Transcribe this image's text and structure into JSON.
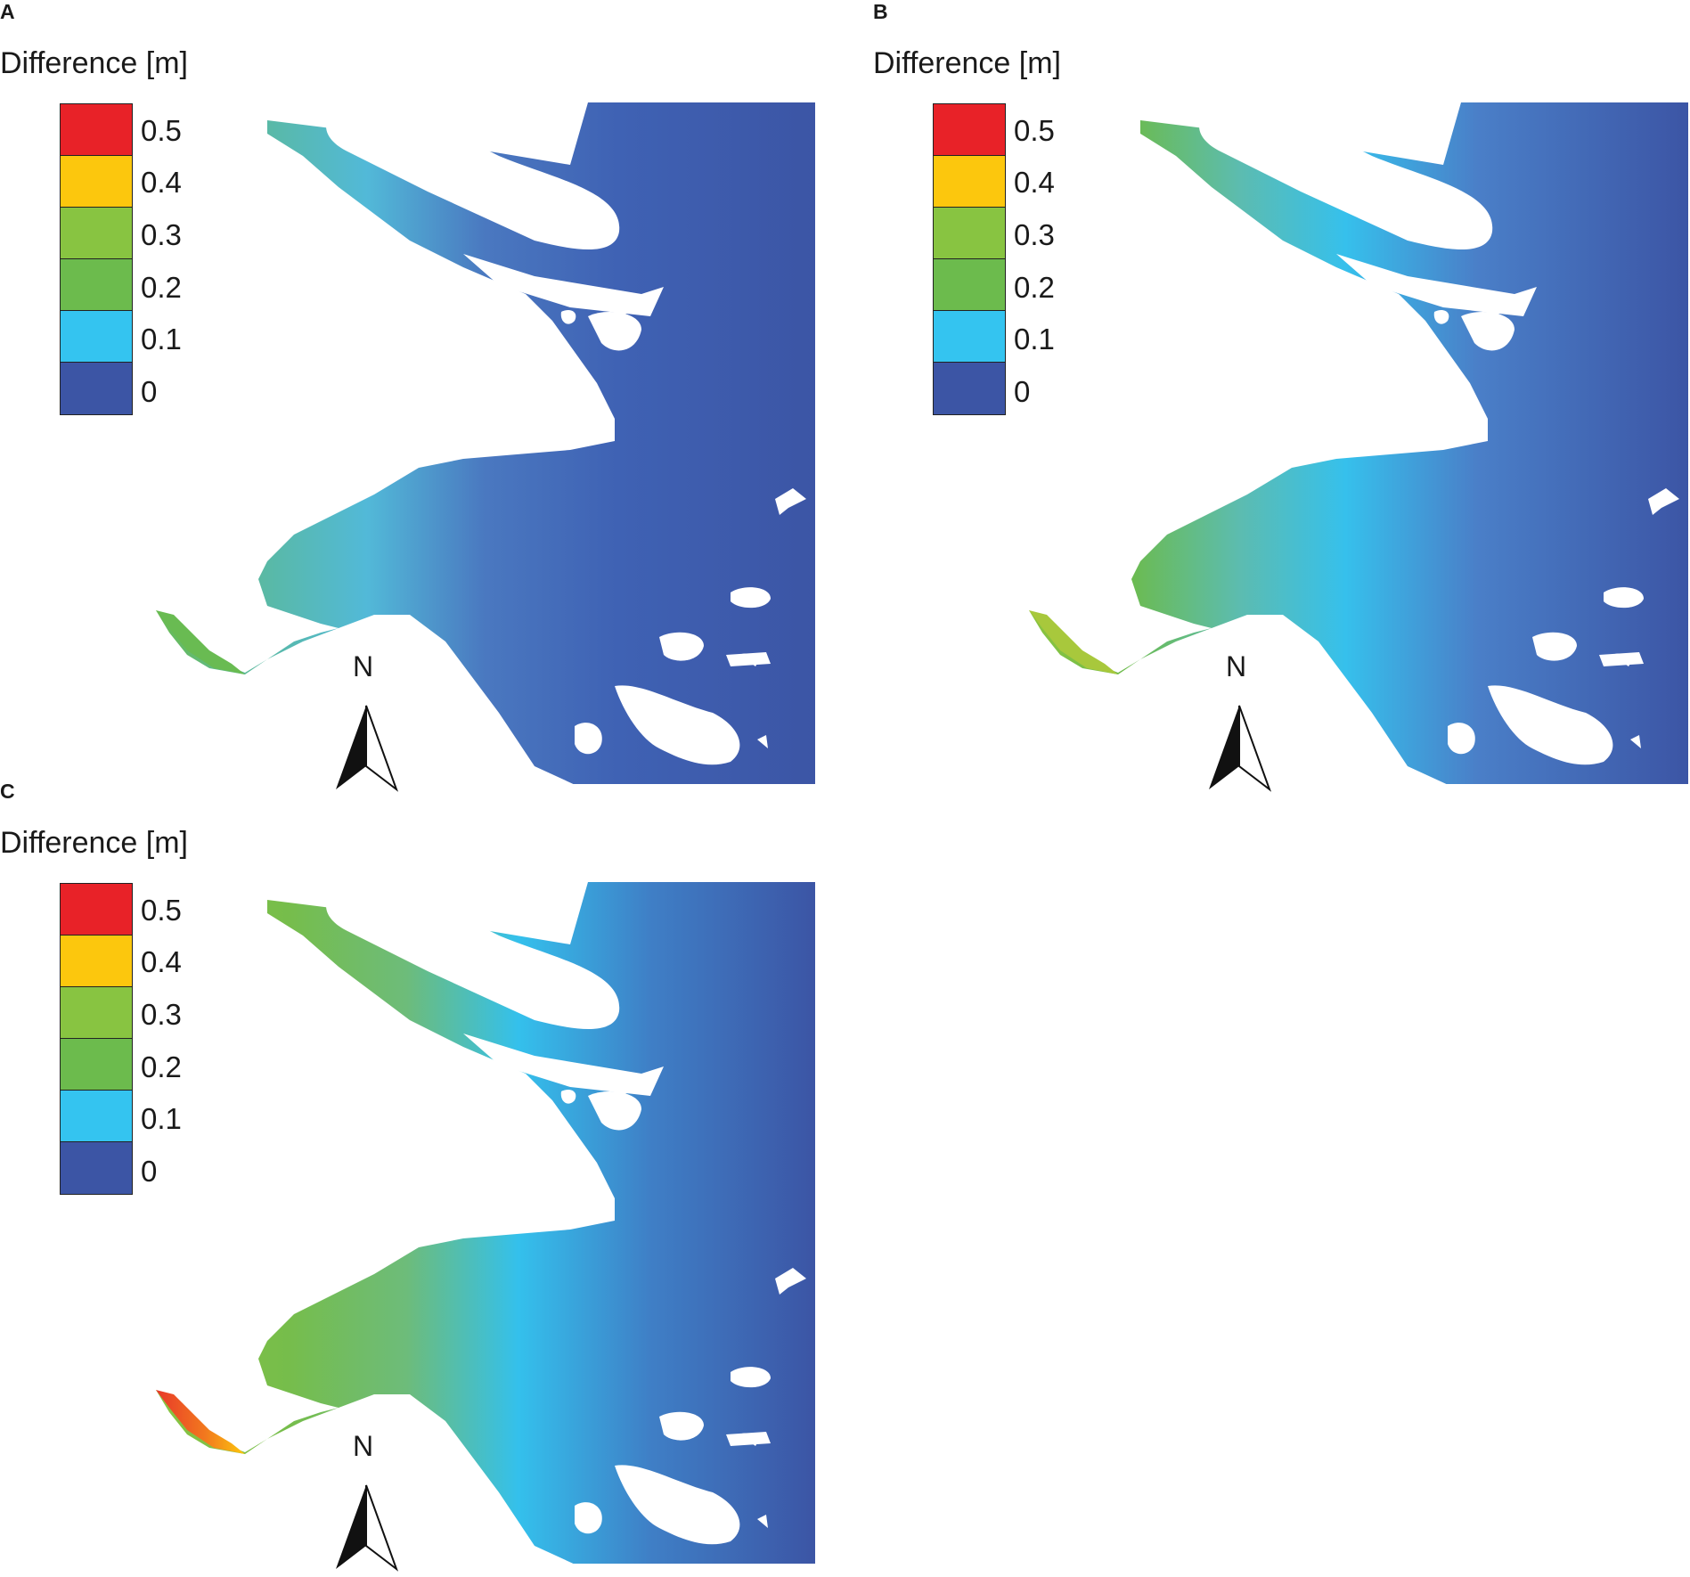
{
  "legend": {
    "title": "Difference [m]",
    "ticks": [
      "0.5",
      "0.4",
      "0.3",
      "0.2",
      "0.1",
      "0"
    ],
    "colors": [
      "#e82228",
      "#fcc70d",
      "#88c441",
      "#6cbb4d",
      "#34c4f0",
      "#3c55a5"
    ]
  },
  "north_label": "N",
  "panels": [
    {
      "label": "A",
      "colors": {
        "head": "#69bb52",
        "lowerbay": "#52b9d8",
        "shelf": "#4a78c0",
        "channel": "#3f62b4"
      }
    },
    {
      "label": "B",
      "colors": {
        "head": "#8cc43f",
        "lowerbay": "#6cbb4d",
        "shelf": "#36c0ec",
        "channel": "#41a8e2"
      }
    },
    {
      "label": "C",
      "colors": {
        "head": "#e8382a",
        "lowerbay": "#76bd4b",
        "shelf": "#6dbc7a",
        "channel": "#34c0ec"
      }
    }
  ],
  "icons": {
    "north_arrow": "north-arrow-icon"
  }
}
